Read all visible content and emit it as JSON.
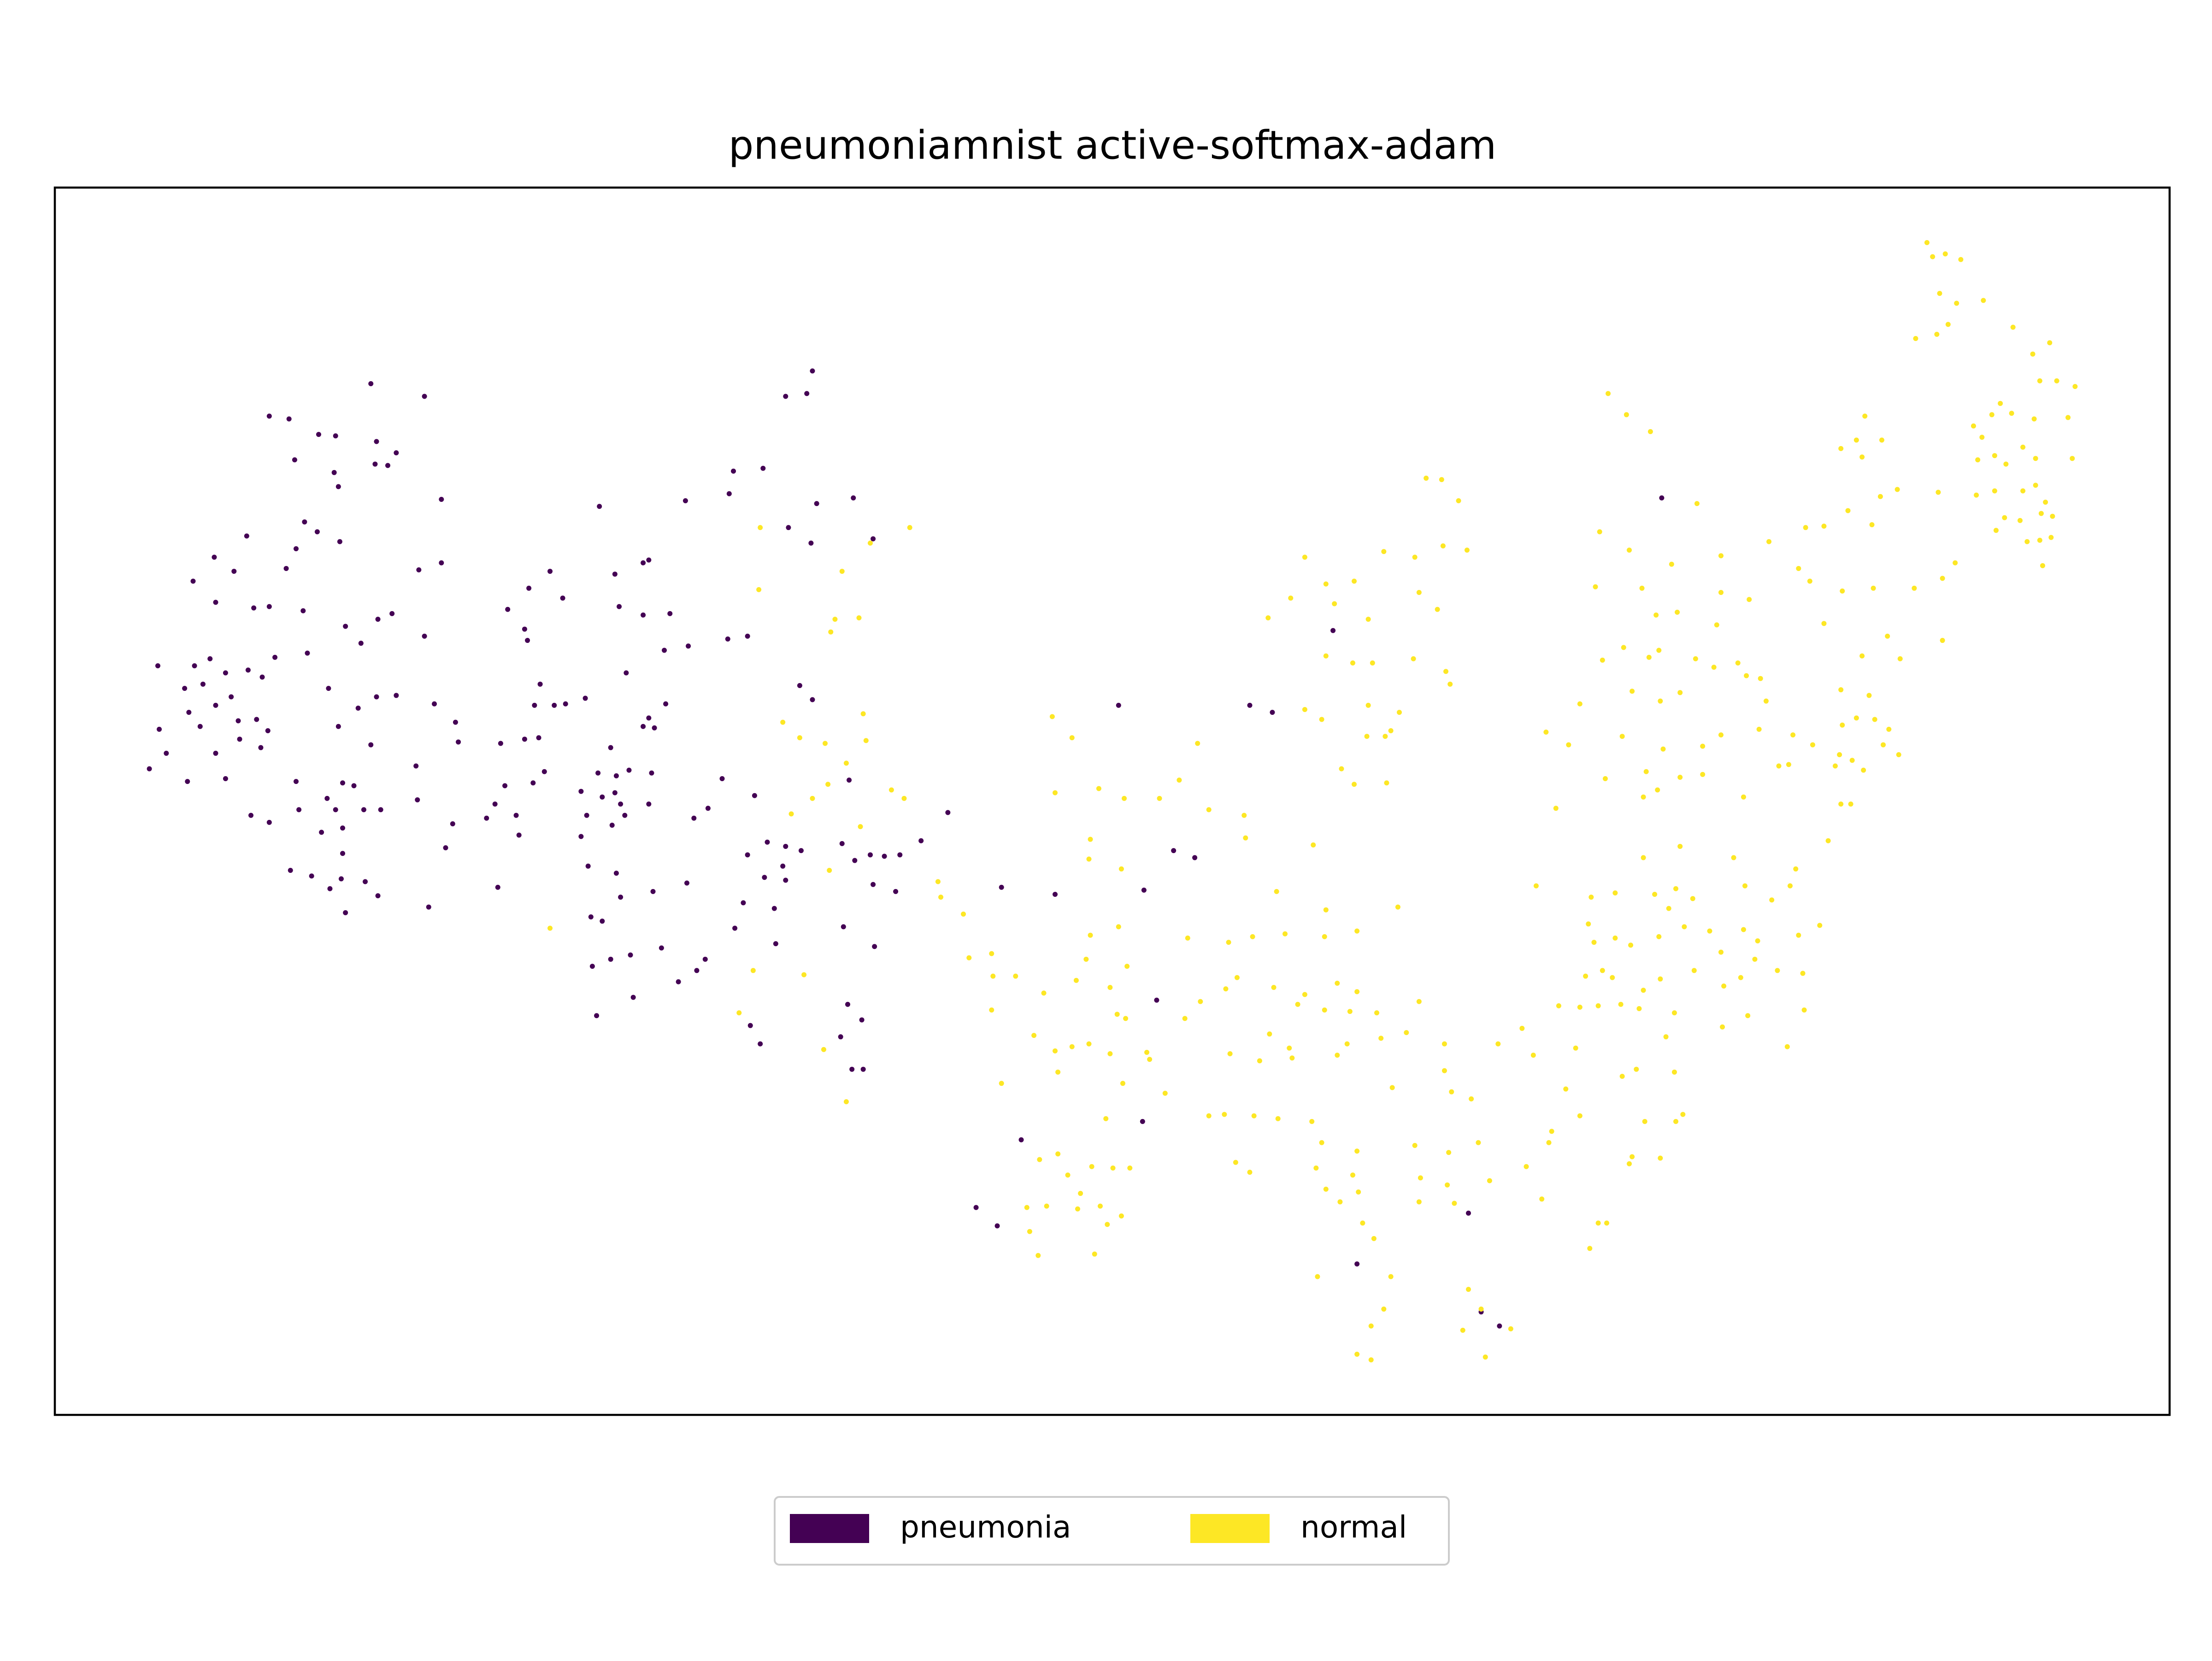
{
  "chart_data": {
    "type": "scatter",
    "title": "pneumoniamnist active-softmax-adam",
    "xlim": [
      39,
      1538
    ],
    "ylim": [
      1003,
      133
    ],
    "series": [
      {
        "name": "pneumonia",
        "color": "#440154",
        "x": [
          263,
          301,
          191,
          205,
          226,
          238,
          267,
          281,
          209,
          266,
          275,
          237,
          240,
          313,
          216,
          225,
          241,
          210,
          175,
          152,
          137,
          166,
          203,
          297,
          313,
          153,
          180,
          191,
          215,
          278,
          268,
          245,
          301,
          256,
          195,
          218,
          138,
          112,
          149,
          160,
          176,
          186,
          131,
          144,
          164,
          233,
          267,
          281,
          308,
          254,
          169,
          153,
          182,
          134,
          113,
          142,
          190,
          240,
          323,
          325,
          263,
          170,
          118,
          106,
          153,
          185,
          133,
          160,
          210,
          243,
          251,
          295,
          232,
          296,
          178,
          191,
          212,
          238,
          258,
          270,
          228,
          243,
          243,
          321,
          316,
          206,
          221,
          234,
          242,
          259,
          268,
          245,
          304,
          425,
          486,
          517,
          520,
          541,
          557,
          572,
          576,
          579,
          605,
          559,
          575,
          619,
          456,
          460,
          436,
          390,
          375,
          399,
          360,
          372,
          439,
          456,
          475,
          488,
          516,
          530,
          471,
          444,
          374,
          383,
          379,
          393,
          401,
          415,
          472,
          460,
          456,
          464,
          567,
          576,
          382,
          372,
          355,
          433,
          424,
          437,
          446,
          386,
          378,
          358,
          412,
          427,
          436,
          462,
          460,
          443,
          416,
          351,
          345,
          366,
          368,
          412,
          434,
          440,
          512,
          502,
          492,
          417,
          437,
          440,
          463,
          487,
          353,
          535,
          544,
          557,
          530,
          555,
          568,
          542,
          549,
          527,
          521,
          550,
          557,
          597,
          602,
          606,
          617,
          627,
          638,
          619,
          635,
          653,
          672,
          419,
          427,
          420,
          433,
          447,
          469,
          500,
          494,
          481,
          449,
          423,
          598,
          620,
          601,
          611,
          532,
          539,
          596,
          604,
          612,
          710,
          748,
          793,
          886,
          902,
          811,
          832,
          847,
          945,
          1178,
          724,
          810,
          820,
          692,
          707,
          1041,
          962,
          1050,
          1063
        ],
        "values": [
          272,
          281,
          295,
          297,
          308,
          309,
          313,
          321,
          326,
          329,
          330,
          335,
          345,
          354,
          370,
          377,
          384,
          389,
          380,
          395,
          412,
          405,
          403,
          404,
          399,
          427,
          431,
          430,
          433,
          435,
          439,
          444,
          451,
          456,
          466,
          463,
          472,
          472,
          467,
          477,
          475,
          480,
          488,
          485,
          494,
          488,
          494,
          493,
          499,
          502,
          511,
          500,
          510,
          505,
          517,
          515,
          518,
          515,
          512,
          526,
          528,
          524,
          534,
          545,
          534,
          530,
          554,
          552,
          554,
          555,
          557,
          543,
          566,
          567,
          578,
          583,
          574,
          574,
          574,
          574,
          590,
          587,
          605,
          584,
          601,
          617,
          621,
          630,
          623,
          625,
          635,
          647,
          643,
          359,
          355,
          350,
          334,
          332,
          281,
          279,
          263,
          357,
          353,
          374,
          385,
          382,
          399,
          397,
          407,
          405,
          417,
          424,
          432,
          446,
          430,
          436,
          435,
          458,
          453,
          451,
          461,
          477,
          454,
          485,
          500,
          500,
          499,
          495,
          499,
          509,
          515,
          516,
          486,
          496,
          523,
          524,
          527,
          530,
          548,
          550,
          546,
          547,
          555,
          557,
          561,
          565,
          562,
          548,
          570,
          578,
          578,
          570,
          580,
          578,
          592,
          593,
          585,
          570,
          552,
          573,
          580,
          614,
          619,
          636,
          632,
          626,
          629,
          564,
          597,
          600,
          606,
          614,
          603,
          622,
          644,
          640,
          658,
          669,
          624,
          598,
          553,
          610,
          606,
          607,
          606,
          627,
          632,
          596,
          576,
          650,
          653,
          685,
          680,
          677,
          672,
          680,
          688,
          696,
          707,
          720,
          657,
          671,
          712,
          723,
          727,
          740,
          735,
          758,
          758,
          629,
          634,
          500,
          500,
          505,
          631,
          603,
          608,
          447,
          353,
          808,
          795,
          709,
          856,
          869,
          860,
          896,
          930,
          940
        ]
      },
      {
        "name": "normal",
        "color": "#fde725",
        "x": [
          539,
          645,
          617,
          597,
          538,
          592,
          609,
          589,
          555,
          567,
          585,
          612,
          614,
          600,
          587,
          576,
          561,
          632,
          641,
          610,
          588,
          665,
          667,
          683,
          687,
          703,
          704,
          720,
          740,
          703,
          733,
          748,
          760,
          772,
          750,
          710,
          763,
          770,
          773,
          793,
          799,
          787,
          792,
          798,
          787,
          796,
          815,
          826,
          784,
          813,
          746,
          760,
          748,
          779,
          797,
          822,
          849,
          836,
          773,
          772,
          795,
          857,
          882,
          883,
          931,
          905,
          842,
          851,
          840,
          871,
          888,
          911,
          939,
          962,
          940,
          991,
          877,
          869,
          903,
          925,
          948,
          962,
          920,
          939,
          957,
          976,
          1006,
          900,
          914,
          948,
          872,
          893,
          916,
          955,
          979,
          997,
          1024,
          1062,
          987,
          1024,
          1029,
          1043,
          857,
          868,
          889,
          906,
          930,
          937,
          962,
          876,
          886,
          933,
          959,
          1003,
          1027,
          1048,
          1007,
          940,
          950,
          963,
          1026,
          1056,
          1082,
          1093,
          1006,
          1031,
          966,
          974,
          934,
          986,
          981,
          972,
          962,
          972,
          1041,
          1037,
          1050,
          1071,
          1053,
          737,
          750,
          757,
          774,
          789,
          801,
          766,
          728,
          742,
          764,
          780,
          785,
          795,
          736,
          730,
          776,
          925,
          940,
          960,
          915,
          899,
          946,
          970,
          981,
          1003,
          1023,
          1040,
          1011,
          1022,
          1034,
          1019,
          1006,
          940,
          959,
          973,
          1002,
          1025,
          1028,
          925,
          937,
          970,
          992,
          986,
          969,
          982,
          951,
          960,
          983,
          1140,
          1153,
          1170,
          1203,
          1134,
          1155,
          1185,
          1164,
          1220,
          1131,
          1174,
          1189,
          1176,
          1169,
          1151,
          1136,
          1202,
          1215,
          1232,
          1220,
          1240,
          1217,
          1238,
          1248,
          1252,
          1247,
          1191,
          1177,
          1157,
          1120,
          1096,
          1112,
          1150,
          1179,
          1207,
          1220,
          1167,
          1191,
          1138,
          1165,
          1175,
          1207,
          1236,
          1103,
          1089,
          1128,
          1145,
          1165,
          1173,
          1188,
          1191,
          1200,
          1229,
          1237,
          1256,
          1273,
          1269,
          1126,
          1130,
          1145,
          1156,
          1176,
          1194,
          1183,
          1212,
          1236,
          1246,
          1220,
          1234,
          1244,
          1260,
          1278,
          1275,
          1290,
          1124,
          1136,
          1143,
          1120,
          1133,
          1149,
          1165,
          1177,
          1201,
          1222,
          1239,
          1221,
          1279,
          1267,
          1187,
          1162,
          1105,
          1087,
          1117,
          1150,
          1160,
          1181,
          1187,
          1110,
          1120,
          1100,
          1098,
          1079,
          1166,
          1188,
          1193,
          1155,
          1157,
          1177,
          1133,
          1139,
          1127,
          1366,
          1370,
          1379,
          1390,
          1375,
          1387,
          1406,
          1381,
          1373,
          1358,
          1427,
          1441,
          1453,
          1446,
          1458,
          1471,
          1418,
          1412,
          1399,
          1426,
          1442,
          1466,
          1405,
          1434,
          1414,
          1402,
          1422,
          1443,
          1469,
          1401,
          1414,
          1434,
          1443,
          1450,
          1374,
          1421,
          1432,
          1447,
          1455,
          1415,
          1437,
          1446,
          1454,
          1448,
          1386,
          1377,
          1357,
          1377,
          1322,
          1305,
          1316,
          1334,
          1320,
          1345,
          1333,
          1327,
          1310,
          1280,
          1293,
          1254,
          1275,
          1283,
          1306,
          1328,
          1293,
          1338,
          1320,
          1347,
          1305,
          1325,
          1329,
          1316,
          1339,
          1335,
          1306,
          1304,
          1285,
          1301,
          1321,
          1313,
          1346,
          1271,
          1268,
          1261,
          1312,
          1305,
          1296,
          390,
          524,
          534,
          570,
          600,
          584
        ],
        "values": [
          374,
          374,
          385,
          405,
          418,
          439,
          438,
          448,
          512,
          523,
          527,
          506,
          525,
          541,
          556,
          566,
          577,
          560,
          566,
          586,
          617,
          625,
          636,
          648,
          679,
          676,
          692,
          692,
          704,
          716,
          734,
          745,
          742,
          740,
          760,
          768,
          695,
          680,
          663,
          657,
          685,
          700,
          719,
          722,
          747,
          768,
          751,
          775,
          793,
          746,
          508,
          523,
          562,
          559,
          566,
          566,
          527,
          553,
          595,
          609,
          616,
          574,
          578,
          594,
          599,
          632,
          665,
          710,
          722,
          668,
          664,
          662,
          664,
          660,
          645,
          643,
          693,
          701,
          700,
          705,
          697,
          703,
          712,
          716,
          717,
          718,
          710,
          733,
          743,
          748,
          747,
          752,
          750,
          740,
          736,
          732,
          740,
          740,
          771,
          759,
          774,
          779,
          791,
          790,
          791,
          793,
          795,
          810,
          816,
          824,
          831,
          828,
          833,
          812,
          817,
          810,
          835,
          843,
          852,
          845,
          840,
          837,
          827,
          850,
          852,
          853,
          867,
          878,
          905,
          905,
          928,
          940,
          960,
          964,
          914,
          943,
          928,
          942,
          962,
          822,
          818,
          833,
          827,
          828,
          828,
          846,
          856,
          855,
          857,
          855,
          868,
          862,
          890,
          873,
          889,
          395,
          414,
          412,
          424,
          438,
          428,
          439,
          391,
          395,
          387,
          390,
          339,
          340,
          355,
          432,
          420,
          465,
          470,
          470,
          467,
          476,
          485,
          503,
          510,
          500,
          505,
          518,
          522,
          522,
          545,
          556,
          555,
          279,
          294,
          306,
          357,
          377,
          390,
          400,
          417,
          394,
          416,
          436,
          434,
          461,
          466,
          459,
          468,
          467,
          473,
          470,
          420,
          425,
          443,
          479,
          481,
          497,
          517,
          491,
          497,
          490,
          499,
          519,
          528,
          522,
          531,
          529,
          521,
          547,
          551,
          552,
          565,
          560,
          549,
          565,
          573,
          628,
          636,
          633,
          608,
          634,
          630,
          600,
          637,
          608,
          628,
          638,
          616,
          628,
          655,
          668,
          665,
          670,
          664,
          657,
          644,
          660,
          659,
          667,
          675,
          693,
          680,
          688,
          690,
          663,
          656,
          692,
          688,
          693,
          714,
          713,
          712,
          702,
          694,
          688,
          699,
          720,
          728,
          716,
          742,
          718,
          715,
          713,
          748,
          743,
          763,
          758,
          735,
          760,
          772,
          791,
          802,
          810,
          729,
          795,
          795,
          790,
          825,
          820,
          821,
          867,
          867,
          885,
          172,
          182,
          180,
          184,
          208,
          215,
          213,
          230,
          237,
          240,
          232,
          251,
          243,
          270,
          270,
          274,
          286,
          294,
          302,
          293,
          297,
          296,
          310,
          317,
          323,
          326,
          329,
          325,
          325,
          351,
          348,
          348,
          344,
          356,
          349,
          367,
          369,
          364,
          366,
          376,
          384,
          383,
          381,
          401,
          399,
          410,
          417,
          454,
          295,
          318,
          312,
          312,
          324,
          347,
          352,
          372,
          362,
          374,
          373,
          384,
          403,
          412,
          419,
          417,
          442,
          451,
          465,
          467,
          489,
          493,
          510,
          509,
          517,
          528,
          514,
          535,
          528,
          543,
          546,
          539,
          535,
          521,
          542,
          543,
          570,
          570,
          596,
          658,
          718,
          688,
          691,
          781,
          744
        ]
      }
    ]
  }
}
